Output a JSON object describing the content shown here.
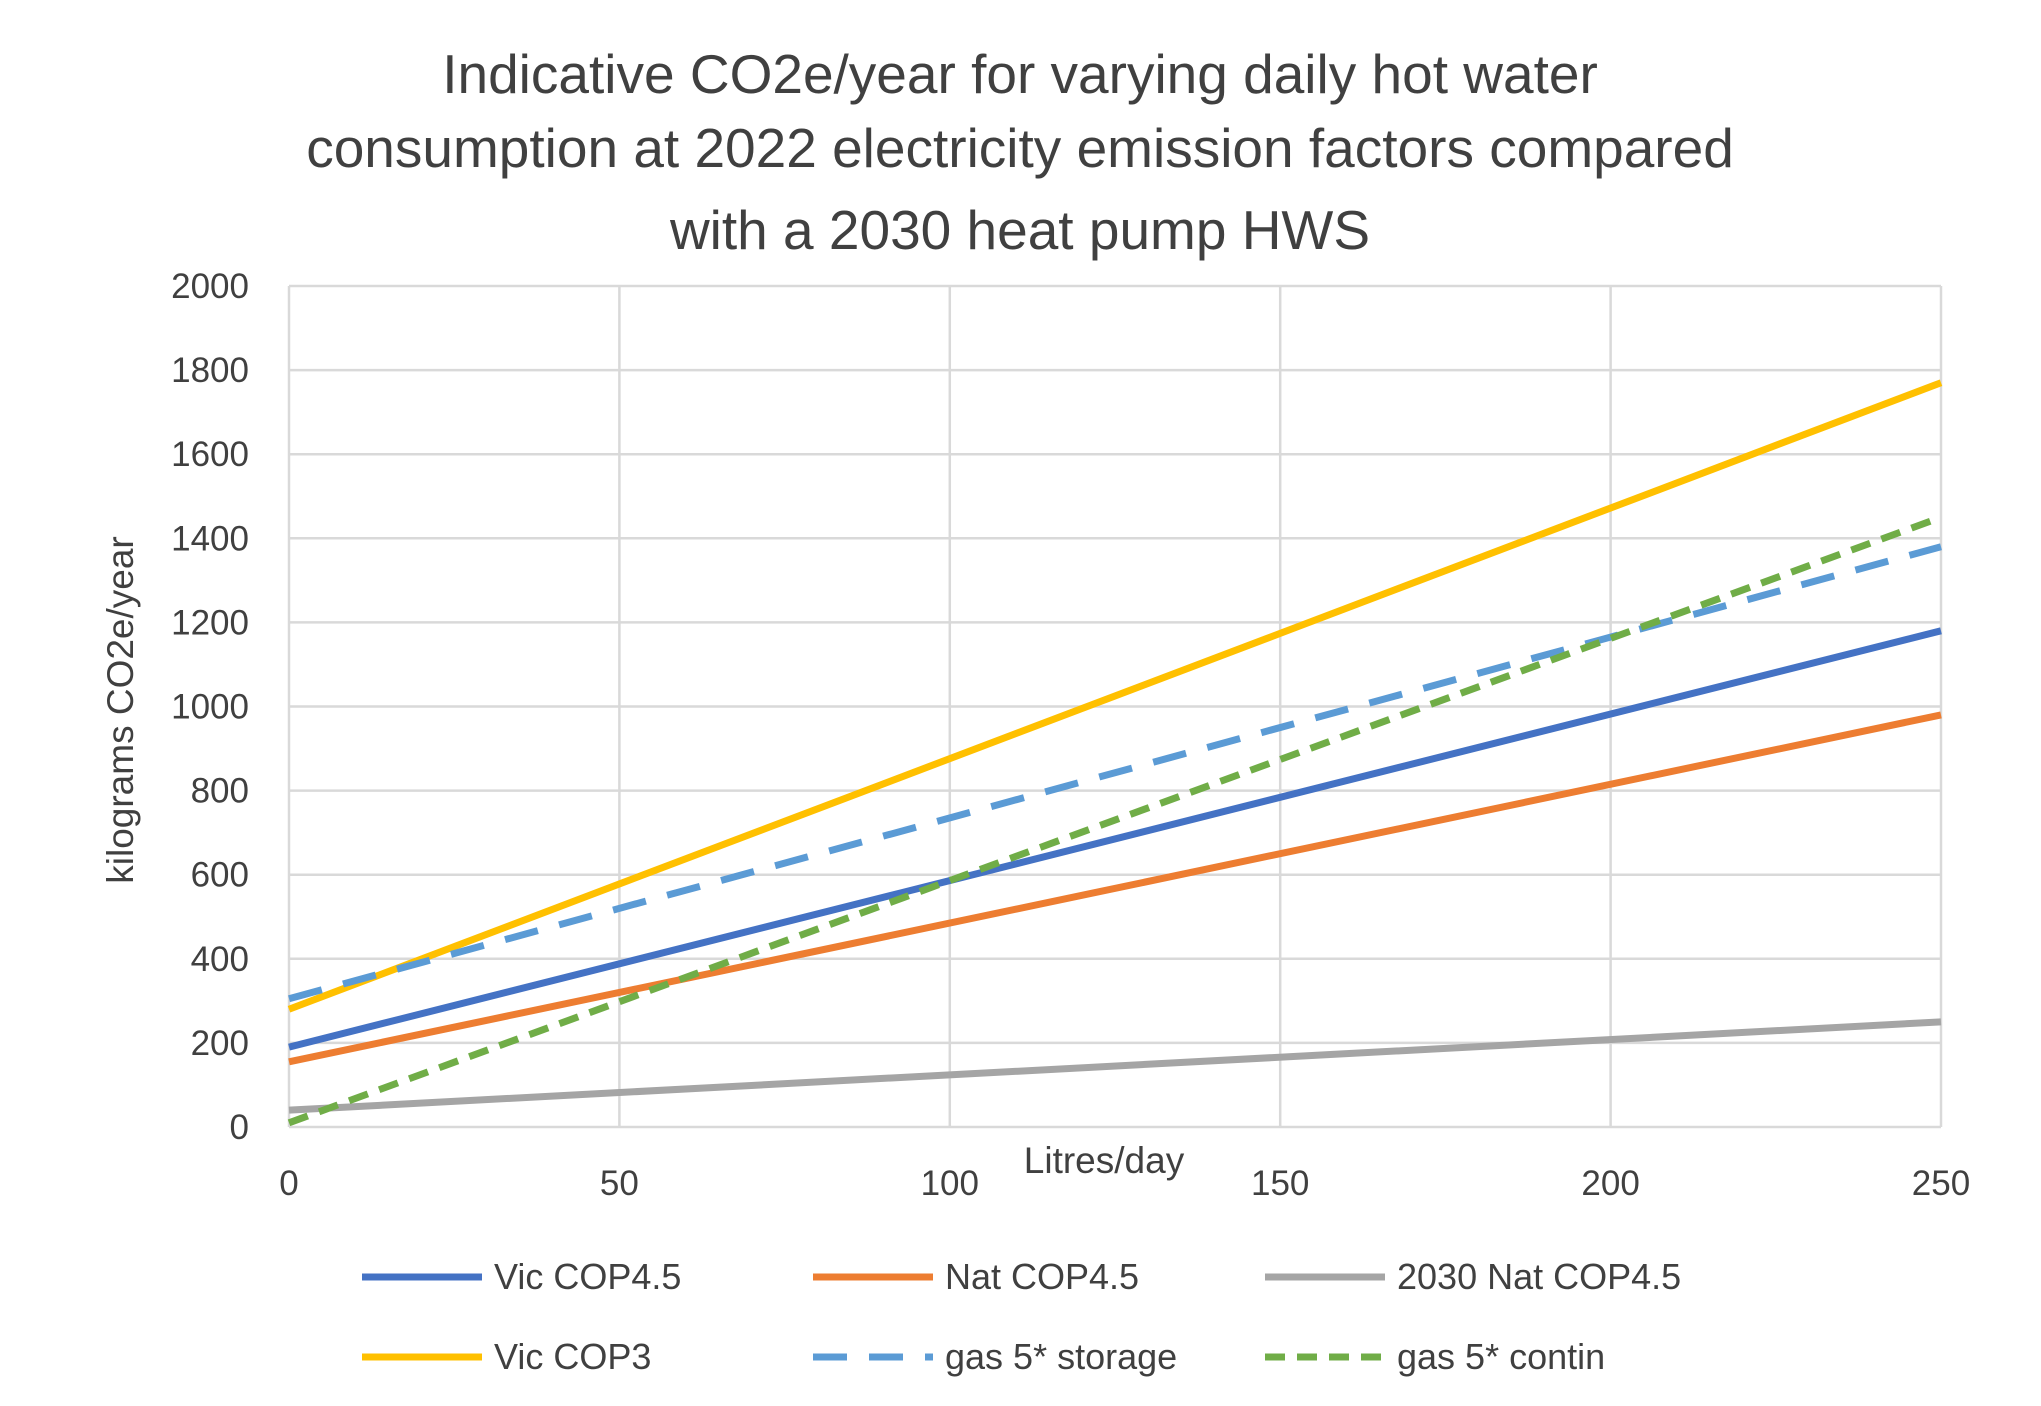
{
  "chart_data": {
    "type": "line",
    "title_lines": [
      "Indicative CO2e/year for varying daily hot water",
      "consumption at 2022 electricity emission factors compared",
      "with a 2030 heat pump HWS"
    ],
    "xlabel": "Litres/day",
    "ylabel": "kilograms CO2e/year",
    "xlim": [
      0,
      250
    ],
    "ylim": [
      0,
      2000
    ],
    "xticks": [
      0,
      50,
      100,
      150,
      200,
      250
    ],
    "yticks": [
      0,
      200,
      400,
      600,
      800,
      1000,
      1200,
      1400,
      1600,
      1800,
      2000
    ],
    "grid": true,
    "legend_position": "bottom",
    "x": [
      0,
      250
    ],
    "series": [
      {
        "name": "Vic COP4.5",
        "values": [
          190,
          1180
        ],
        "color": "#4472C4",
        "dash": "solid"
      },
      {
        "name": "Nat COP4.5",
        "values": [
          155,
          980
        ],
        "color": "#ED7D31",
        "dash": "solid"
      },
      {
        "name": "2030 Nat COP4.5",
        "values": [
          40,
          250
        ],
        "color": "#A5A5A5",
        "dash": "solid"
      },
      {
        "name": "Vic COP3",
        "values": [
          280,
          1770
        ],
        "color": "#FFC000",
        "dash": "solid"
      },
      {
        "name": "gas 5* storage",
        "values": [
          305,
          1380
        ],
        "color": "#5B9BD5",
        "dash": "long-dash"
      },
      {
        "name": "gas 5* contin",
        "values": [
          10,
          1450
        ],
        "color": "#70AD47",
        "dash": "short-dash"
      }
    ]
  }
}
